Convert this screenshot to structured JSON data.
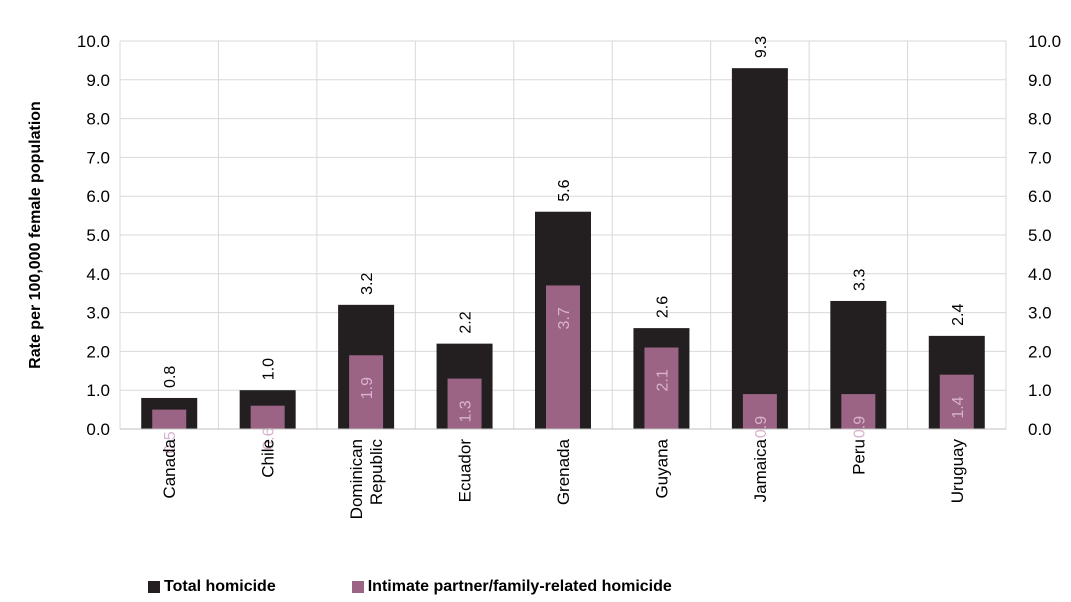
{
  "chart_data": {
    "type": "bar",
    "ylabel": "Rate per 100,000 female population",
    "ylim": [
      0,
      10
    ],
    "yticks": [
      "0.0",
      "1.0",
      "2.0",
      "3.0",
      "4.0",
      "5.0",
      "6.0",
      "7.0",
      "8.0",
      "9.0",
      "10.0"
    ],
    "secondary_axis_ticks": [
      "0.0",
      "1.0",
      "2.0",
      "3.0",
      "4.0",
      "5.0",
      "6.0",
      "7.0",
      "8.0",
      "9.0",
      "10.0"
    ],
    "grid": true,
    "legend_position": "bottom",
    "categories": [
      [
        "Canada"
      ],
      [
        "Chile"
      ],
      [
        "Dominican",
        "Republic"
      ],
      [
        "Ecuador"
      ],
      [
        "Grenada"
      ],
      [
        "Guyana"
      ],
      [
        "Jamaica"
      ],
      [
        "Peru"
      ],
      [
        "Uruguay"
      ]
    ],
    "series": [
      {
        "name": "Total homicide",
        "color": "#231f20",
        "values": [
          0.8,
          1.0,
          3.2,
          2.2,
          5.6,
          2.6,
          9.3,
          3.3,
          2.4
        ],
        "labels": [
          "0.8",
          "1.0",
          "3.2",
          "2.2",
          "5.6",
          "2.6",
          "9.3",
          "3.3",
          "2.4"
        ]
      },
      {
        "name": "Intimate partner/family-related homicide",
        "color": "#9b6384",
        "label_color": "#d9b3cf",
        "values": [
          0.5,
          0.6,
          1.9,
          1.3,
          3.7,
          2.1,
          0.9,
          0.9,
          1.4
        ],
        "labels": [
          "0.5",
          "0.6",
          "1.9",
          "1.3",
          "3.7",
          "2.1",
          "0.9",
          "0.9",
          "1.4"
        ]
      }
    ]
  }
}
